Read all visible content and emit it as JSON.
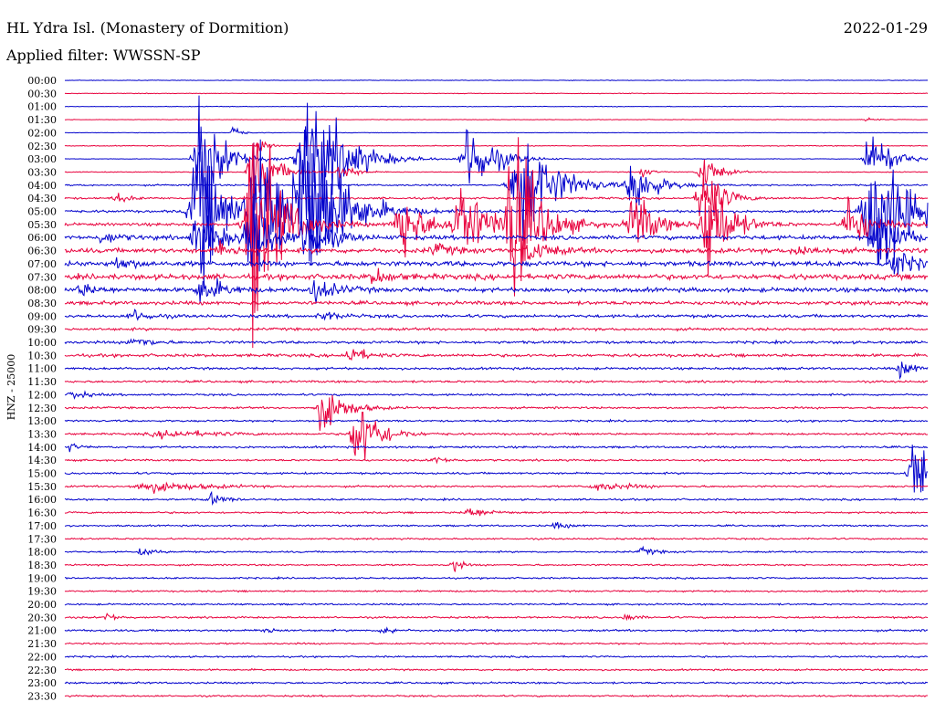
{
  "header": {
    "station": "HL Ydra Isl. (Monastery of Dormition)",
    "date": "2022-01-29",
    "filter": "Applied filter: WWSSN-SP"
  },
  "chart_data": {
    "type": "line",
    "title": "HL Ydra Isl. (Monastery of Dormition)",
    "subtitle": "Applied filter: WWSSN-SP",
    "ylabel": "HNZ - 25000",
    "rows": [
      "00:00",
      "00:30",
      "01:00",
      "01:30",
      "02:00",
      "02:30",
      "03:00",
      "03:30",
      "04:00",
      "04:30",
      "05:00",
      "05:30",
      "06:00",
      "06:30",
      "07:00",
      "07:30",
      "08:00",
      "08:30",
      "09:00",
      "09:30",
      "10:00",
      "10:30",
      "11:00",
      "11:30",
      "12:00",
      "12:30",
      "13:00",
      "13:30",
      "14:00",
      "14:30",
      "15:00",
      "15:30",
      "16:00",
      "16:30",
      "17:00",
      "17:30",
      "18:00",
      "18:30",
      "19:00",
      "19:30",
      "20:00",
      "20:30",
      "21:00",
      "21:30",
      "22:00",
      "22:30",
      "23:00",
      "23:30"
    ],
    "colors": [
      "#0000cc",
      "#e8003c"
    ],
    "noise": [
      0.3,
      0.4,
      0.4,
      0.3,
      0.3,
      0.5,
      0.3,
      0.5,
      1.0,
      1.2,
      1.5,
      1.8,
      2.5,
      2.8,
      3.0,
      3.2,
      2.6,
      2.2,
      1.8,
      1.6,
      1.6,
      1.8,
      1.4,
      1.3,
      1.2,
      1.2,
      1.1,
      1.2,
      1.2,
      1.1,
      1.2,
      1.1,
      1.1,
      1.1,
      1.0,
      1.0,
      1.0,
      1.0,
      1.0,
      1.0,
      1.0,
      1.1,
      1.2,
      1.0,
      1.0,
      1.0,
      1.1,
      1.0
    ],
    "events": [
      {
        "row": 3,
        "pos": 0.93,
        "amp": 5,
        "width": 0.004,
        "dir": "up"
      },
      {
        "row": 4,
        "pos": 0.195,
        "amp": 12,
        "width": 0.004
      },
      {
        "row": 5,
        "pos": 0.225,
        "amp": 10,
        "width": 0.005
      },
      {
        "row": 6,
        "pos": 0.16,
        "amp": 60,
        "width": 0.015
      },
      {
        "row": 6,
        "pos": 0.285,
        "amp": 100,
        "width": 0.02
      },
      {
        "row": 6,
        "pos": 0.47,
        "amp": 55,
        "width": 0.014
      },
      {
        "row": 6,
        "pos": 0.935,
        "amp": 45,
        "width": 0.012
      },
      {
        "row": 7,
        "pos": 0.22,
        "amp": 45,
        "width": 0.012
      },
      {
        "row": 7,
        "pos": 0.32,
        "amp": 12,
        "width": 0.008
      },
      {
        "row": 7,
        "pos": 0.74,
        "amp": 25,
        "width": 0.009
      },
      {
        "row": 7,
        "pos": 0.67,
        "amp": 6,
        "width": 0.006
      },
      {
        "row": 8,
        "pos": 0.53,
        "amp": 90,
        "width": 0.018
      },
      {
        "row": 8,
        "pos": 0.66,
        "amp": 40,
        "width": 0.012
      },
      {
        "row": 9,
        "pos": 0.74,
        "amp": 55,
        "width": 0.01
      },
      {
        "row": 9,
        "pos": 0.06,
        "amp": 8,
        "width": 0.006
      },
      {
        "row": 10,
        "pos": 0.155,
        "amp": 120,
        "width": 0.014
      },
      {
        "row": 10,
        "pos": 0.225,
        "amp": 120,
        "width": 0.018
      },
      {
        "row": 10,
        "pos": 0.28,
        "amp": 130,
        "width": 0.02
      },
      {
        "row": 10,
        "pos": 0.94,
        "amp": 110,
        "width": 0.02
      },
      {
        "row": 11,
        "pos": 0.22,
        "amp": 160,
        "width": 0.015
      },
      {
        "row": 11,
        "pos": 0.39,
        "amp": 50,
        "width": 0.013
      },
      {
        "row": 11,
        "pos": 0.46,
        "amp": 60,
        "width": 0.015
      },
      {
        "row": 11,
        "pos": 0.52,
        "amp": 120,
        "width": 0.015
      },
      {
        "row": 11,
        "pos": 0.66,
        "amp": 45,
        "width": 0.012
      },
      {
        "row": 11,
        "pos": 0.745,
        "amp": 90,
        "width": 0.012
      },
      {
        "row": 11,
        "pos": 0.91,
        "amp": 40,
        "width": 0.012
      },
      {
        "row": 12,
        "pos": 0.045,
        "amp": 8,
        "width": 0.01
      },
      {
        "row": 12,
        "pos": 0.155,
        "amp": 40,
        "width": 0.012
      },
      {
        "row": 12,
        "pos": 0.215,
        "amp": 60,
        "width": 0.012
      },
      {
        "row": 12,
        "pos": 0.28,
        "amp": 40,
        "width": 0.012
      },
      {
        "row": 12,
        "pos": 0.945,
        "amp": 40,
        "width": 0.012
      },
      {
        "row": 13,
        "pos": 0.18,
        "amp": 10,
        "width": 0.01
      },
      {
        "row": 13,
        "pos": 0.43,
        "amp": 8,
        "width": 0.01
      },
      {
        "row": 13,
        "pos": 0.54,
        "amp": 15,
        "width": 0.012
      },
      {
        "row": 13,
        "pos": 0.85,
        "amp": 8,
        "width": 0.01
      },
      {
        "row": 14,
        "pos": 0.06,
        "amp": 8,
        "width": 0.01
      },
      {
        "row": 14,
        "pos": 0.96,
        "amp": 20,
        "width": 0.012
      },
      {
        "row": 15,
        "pos": 0.36,
        "amp": 10,
        "width": 0.01
      },
      {
        "row": 16,
        "pos": 0.02,
        "amp": 8,
        "width": 0.01
      },
      {
        "row": 16,
        "pos": 0.16,
        "amp": 20,
        "width": 0.012
      },
      {
        "row": 16,
        "pos": 0.29,
        "amp": 15,
        "width": 0.012
      },
      {
        "row": 18,
        "pos": 0.08,
        "amp": 8,
        "width": 0.01
      },
      {
        "row": 18,
        "pos": 0.3,
        "amp": 6,
        "width": 0.01
      },
      {
        "row": 20,
        "pos": 0.08,
        "amp": 8,
        "width": 0.01
      },
      {
        "row": 21,
        "pos": 0.33,
        "amp": 15,
        "width": 0.008
      },
      {
        "row": 22,
        "pos": 0.97,
        "amp": 12,
        "width": 0.008
      },
      {
        "row": 24,
        "pos": 0.01,
        "amp": 6,
        "width": 0.008
      },
      {
        "row": 25,
        "pos": 0.3,
        "amp": 35,
        "width": 0.012
      },
      {
        "row": 27,
        "pos": 0.34,
        "amp": 55,
        "width": 0.012
      },
      {
        "row": 27,
        "pos": 0.12,
        "amp": 5,
        "width": 0.03
      },
      {
        "row": 28,
        "pos": 0.005,
        "amp": 8,
        "width": 0.004
      },
      {
        "row": 29,
        "pos": 0.43,
        "amp": 4,
        "width": 0.01
      },
      {
        "row": 30,
        "pos": 0.985,
        "amp": 55,
        "width": 0.01
      },
      {
        "row": 31,
        "pos": 0.1,
        "amp": 7,
        "width": 0.03
      },
      {
        "row": 31,
        "pos": 0.62,
        "amp": 5,
        "width": 0.02
      },
      {
        "row": 32,
        "pos": 0.17,
        "amp": 8,
        "width": 0.008
      },
      {
        "row": 33,
        "pos": 0.47,
        "amp": 7,
        "width": 0.012
      },
      {
        "row": 34,
        "pos": 0.57,
        "amp": 4,
        "width": 0.008
      },
      {
        "row": 36,
        "pos": 0.09,
        "amp": 5,
        "width": 0.008
      },
      {
        "row": 36,
        "pos": 0.67,
        "amp": 5,
        "width": 0.008
      },
      {
        "row": 37,
        "pos": 0.45,
        "amp": 14,
        "width": 0.004
      },
      {
        "row": 41,
        "pos": 0.05,
        "amp": 6,
        "width": 0.006
      },
      {
        "row": 41,
        "pos": 0.65,
        "amp": 6,
        "width": 0.006
      },
      {
        "row": 42,
        "pos": 0.37,
        "amp": 7,
        "width": 0.006
      },
      {
        "row": 42,
        "pos": 0.23,
        "amp": 6,
        "width": 0.006
      }
    ]
  }
}
